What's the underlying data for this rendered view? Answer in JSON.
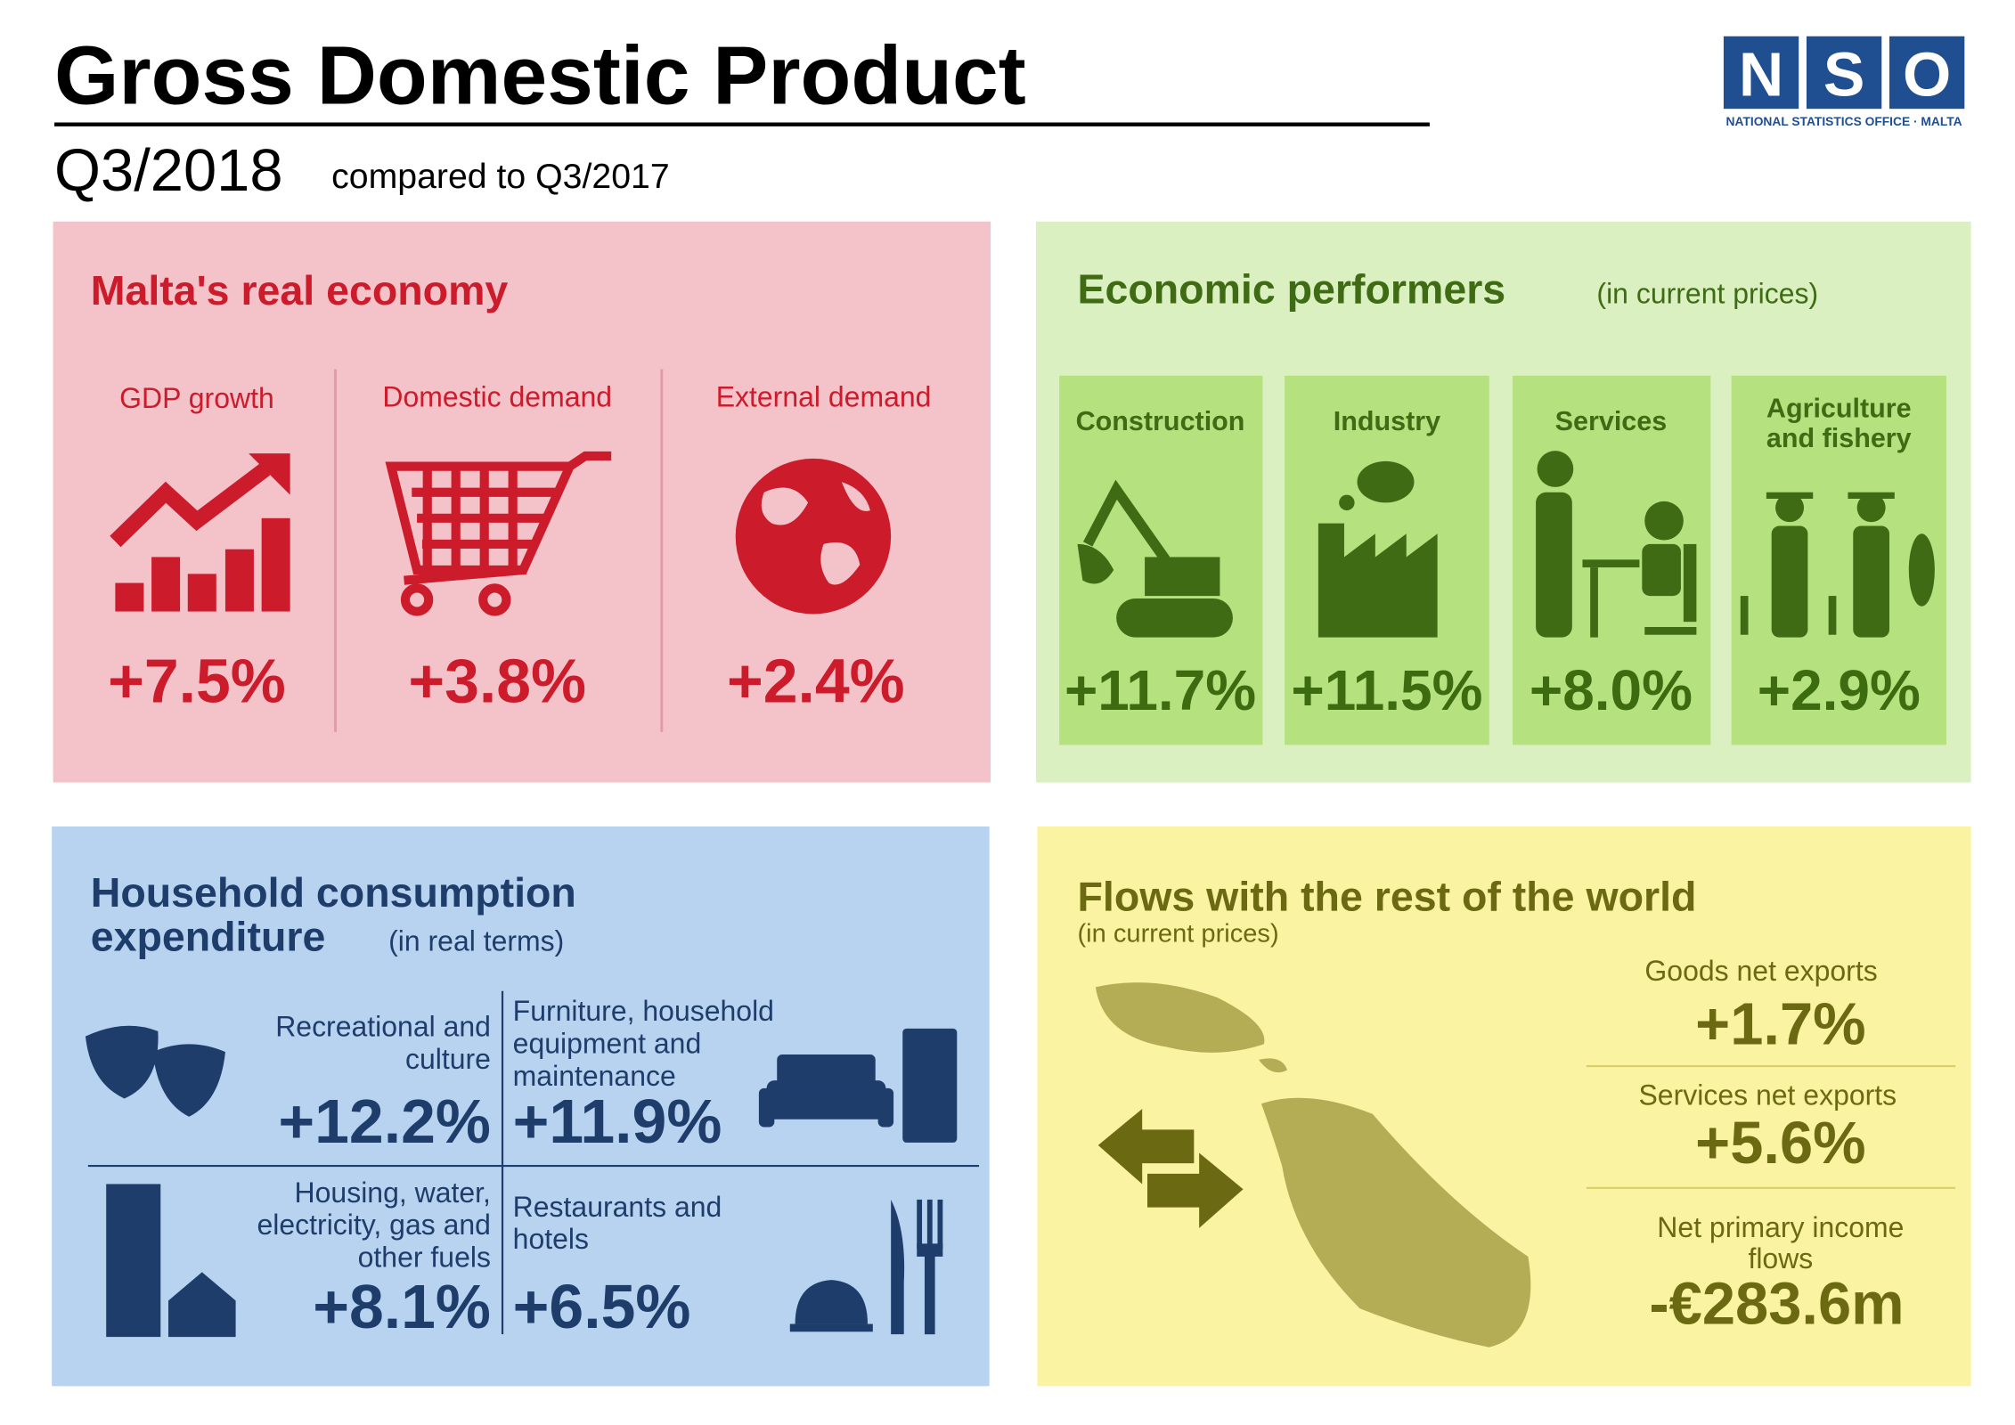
{
  "header": {
    "title": "Gross Domestic Product",
    "period": "Q3/2018",
    "comparison": "compared to Q3/2017",
    "logo": {
      "letters": [
        "N",
        "S",
        "O"
      ],
      "caption": "NATIONAL STATISTICS OFFICE · MALTA"
    }
  },
  "real_economy": {
    "title": "Malta's real economy",
    "items": [
      {
        "label": "GDP growth",
        "value": "+7.5%"
      },
      {
        "label": "Domestic demand",
        "value": "+3.8%"
      },
      {
        "label": "External demand",
        "value": "+2.4%"
      }
    ]
  },
  "performers": {
    "title": "Economic performers",
    "note": "(in current prices)",
    "items": [
      {
        "label": [
          "Construction"
        ],
        "value": "+11.7%"
      },
      {
        "label": [
          "Industry"
        ],
        "value": "+11.5%"
      },
      {
        "label": [
          "Services"
        ],
        "value": "+8.0%"
      },
      {
        "label": [
          "Agriculture",
          "and fishery"
        ],
        "value": "+2.9%"
      }
    ]
  },
  "household": {
    "title": [
      "Household consumption",
      "expenditure"
    ],
    "note": "(in real terms)",
    "items": [
      {
        "label": [
          "Recreational and",
          "culture"
        ],
        "value": "+12.2%"
      },
      {
        "label": [
          "Furniture, household",
          "equipment and",
          "maintenance"
        ],
        "value": "+11.9%"
      },
      {
        "label": [
          "Housing, water,",
          "electricity, gas and",
          "other fuels"
        ],
        "value": "+8.1%"
      },
      {
        "label": [
          "Restaurants and",
          "hotels"
        ],
        "value": "+6.5%"
      }
    ]
  },
  "flows": {
    "title": "Flows with the rest of the world",
    "note": "(in current prices)",
    "items": [
      {
        "label": [
          "Goods net exports"
        ],
        "value": "+1.7%"
      },
      {
        "label": [
          "Services net exports"
        ],
        "value": "+5.6%"
      },
      {
        "label": [
          "Net primary income",
          "flows"
        ],
        "value": "-€283.6m"
      }
    ]
  }
}
